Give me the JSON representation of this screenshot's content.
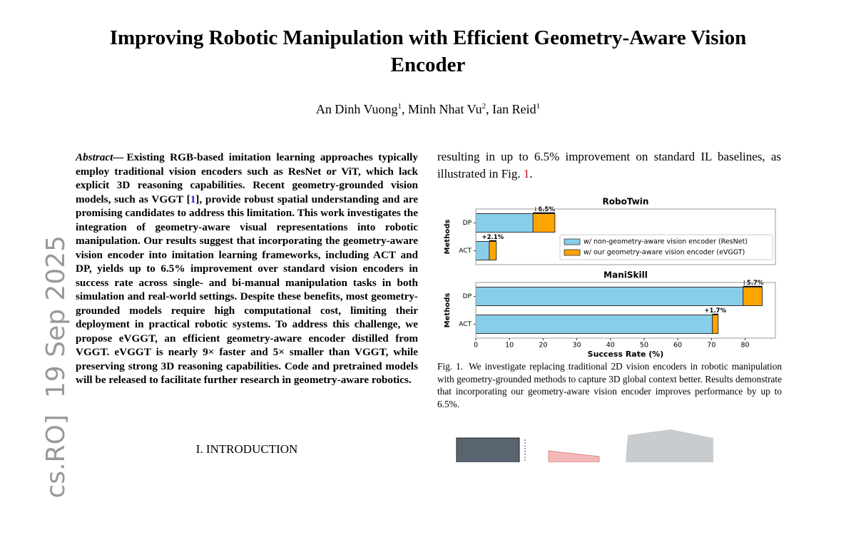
{
  "side_stamp": "cs.RO]  19 Sep 2025",
  "header": {
    "title": "Improving Robotic Manipulation with Efficient Geometry-Aware Vision Encoder",
    "authors": [
      {
        "name": "An Dinh Vuong",
        "sup": "1",
        "sep": ","
      },
      {
        "name": "Minh Nhat Vu",
        "sup": "2",
        "sep": ","
      },
      {
        "name": "Ian Reid",
        "sup": "1"
      }
    ]
  },
  "abstract": {
    "label": "Abstract—",
    "text_before_ref": "Existing RGB-based imitation learning approaches typically employ traditional vision encoders such as ResNet or ViT, which lack explicit 3D reasoning capabilities. Recent geometry-grounded vision models, such as VGGT [",
    "ref": "1",
    "text_after_ref": "], provide robust spatial understanding and are promising candidates to address this limitation. This work investigates the integration of geometry-aware visual representations into robotic manipulation. Our results suggest that incorporating the geometry-aware vision encoder into imitation learning frameworks, including ACT and DP, yields up to 6.5% improvement over standard vision encoders in success rate across single- and bi-manual manipulation tasks in both simulation and real-world settings. Despite these benefits, most geometry-grounded models require high computational cost, limiting their deployment in practical robotic systems. To address this challenge, we propose eVGGT, an efficient geometry-aware encoder distilled from VGGT. eVGGT is nearly 9× faster and 5× smaller than VGGT, while preserving strong 3D reasoning capabilities. Code and pretrained models will be released to facilitate further research in geometry-aware robotics."
  },
  "section_heading": "I. INTRODUCTION",
  "intro_paragraph": {
    "text": "resulting in up to 6.5% improvement on standard IL baselines, as illustrated in Fig. ",
    "ref": "1",
    "end": "."
  },
  "figure": {
    "chart_data": [
      {
        "type": "bar",
        "orientation": "horizontal",
        "stacked": true,
        "title": "RoboTwin",
        "ylabel": "Methods",
        "categories": [
          "DP",
          "ACT"
        ],
        "xlim": [
          0,
          89
        ],
        "legend": "center right",
        "series": [
          {
            "name": "w/ non-geometry-aware vision encoder (ResNet)",
            "color": "#87ceeb",
            "values": [
              17,
              4
            ]
          },
          {
            "name": "w/ our geometry-aware vision encoder (eVGGT)",
            "color": "#ffa500",
            "values": [
              6.5,
              2.1
            ],
            "value_labels": [
              "+6.5%",
              "+2.1%"
            ]
          }
        ]
      },
      {
        "type": "bar",
        "orientation": "horizontal",
        "stacked": true,
        "title": "ManiSkill",
        "ylabel": "Methods",
        "xlabel": "Success Rate (%)",
        "categories": [
          "DP",
          "ACT"
        ],
        "xlim": [
          0,
          89
        ],
        "xticks": [
          0,
          10,
          20,
          30,
          40,
          50,
          60,
          70,
          80
        ],
        "series": [
          {
            "color": "#87ceeb",
            "values": [
              79.4,
              70.3
            ]
          },
          {
            "color": "#ffa500",
            "values": [
              5.7,
              1.7
            ],
            "value_labels": [
              "+5.7%",
              "+1.7%"
            ]
          }
        ]
      }
    ],
    "caption": {
      "label": "Fig. 1.",
      "text": "We investigate replacing traditional 2D vision encoders in robotic manipulation with geometry-grounded methods to capture 3D global context better. Results demonstrate that incorporating our geometry-aware vision encoder improves performance by up to 6.5%."
    }
  }
}
